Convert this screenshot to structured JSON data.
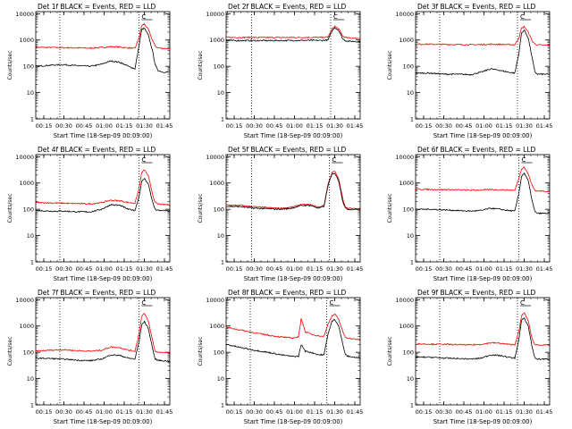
{
  "figure": {
    "xlabel": "Start Time (18-Sep-09 00:09:00)",
    "ylabel": "Counts/sec",
    "x_ticks": [
      "00:15",
      "00:30",
      "00:45",
      "01:00",
      "01:15",
      "01:30",
      "01:45"
    ],
    "y_ticks": [
      "1",
      "10",
      "100",
      "1000",
      "10000"
    ],
    "flag_label": "C",
    "colors": {
      "events": "#000000",
      "lld": "#ff0000",
      "axes": "#000000"
    }
  },
  "chart_data": [
    {
      "type": "line",
      "title": "Det 1f BLACK = Events, RED = LLD",
      "x_minutes_label": "minutes after 00:09:00",
      "xlim": [
        "00:09",
        "01:49"
      ],
      "ylim": [
        1,
        12000
      ],
      "yscale": "log",
      "markers": [
        "00:27",
        "01:26"
      ],
      "series": [
        {
          "name": "Events",
          "color": "#000000",
          "x": [
            "00:09",
            "00:20",
            "00:30",
            "00:40",
            "00:50",
            "00:58",
            "01:05",
            "01:12",
            "01:18",
            "01:23",
            "01:26",
            "01:28",
            "01:30",
            "01:33",
            "01:36",
            "01:38",
            "01:40",
            "01:44",
            "01:49"
          ],
          "y": [
            100,
            110,
            115,
            105,
            100,
            120,
            160,
            140,
            100,
            80,
            600,
            2500,
            2800,
            1500,
            400,
            120,
            70,
            60,
            60
          ]
        },
        {
          "name": "LLD",
          "color": "#ff0000",
          "x": [
            "00:09",
            "00:20",
            "00:30",
            "00:40",
            "00:50",
            "00:58",
            "01:05",
            "01:12",
            "01:18",
            "01:23",
            "01:26",
            "01:28",
            "01:30",
            "01:33",
            "01:36",
            "01:38",
            "01:40",
            "01:44",
            "01:49"
          ],
          "y": [
            520,
            520,
            510,
            500,
            490,
            520,
            560,
            540,
            500,
            480,
            1200,
            3500,
            4000,
            2500,
            1000,
            600,
            500,
            480,
            470
          ]
        }
      ]
    },
    {
      "type": "line",
      "title": "Det 2f BLACK = Events, RED = LLD",
      "xlim": [
        "00:09",
        "01:49"
      ],
      "ylim": [
        1,
        12000
      ],
      "yscale": "log",
      "markers": [
        "00:28",
        "01:27"
      ],
      "series": [
        {
          "name": "Events",
          "color": "#000000",
          "x": [
            "00:09",
            "00:20",
            "00:30",
            "00:40",
            "00:50",
            "01:00",
            "01:10",
            "01:20",
            "01:25",
            "01:28",
            "01:30",
            "01:33",
            "01:36",
            "01:38",
            "01:40",
            "01:44",
            "01:49"
          ],
          "y": [
            950,
            950,
            950,
            950,
            950,
            960,
            970,
            960,
            1000,
            2200,
            3000,
            2300,
            1100,
            950,
            900,
            880,
            870
          ]
        },
        {
          "name": "LLD",
          "color": "#ff0000",
          "x": [
            "00:09",
            "00:20",
            "00:30",
            "00:40",
            "00:50",
            "01:00",
            "01:10",
            "01:20",
            "01:25",
            "01:28",
            "01:30",
            "01:33",
            "01:36",
            "01:38",
            "01:40",
            "01:44",
            "01:49"
          ],
          "y": [
            1250,
            1250,
            1250,
            1240,
            1240,
            1250,
            1260,
            1250,
            1300,
            2600,
            3300,
            2600,
            1400,
            1250,
            1200,
            1180,
            1150
          ]
        }
      ]
    },
    {
      "type": "line",
      "title": "Det 3f BLACK = Events, RED = LLD",
      "xlim": [
        "00:09",
        "01:49"
      ],
      "ylim": [
        1,
        12000
      ],
      "yscale": "log",
      "markers": [
        "00:27",
        "01:25"
      ],
      "series": [
        {
          "name": "Events",
          "color": "#000000",
          "x": [
            "00:09",
            "00:20",
            "00:30",
            "00:40",
            "00:50",
            "00:58",
            "01:05",
            "01:12",
            "01:18",
            "01:23",
            "01:26",
            "01:28",
            "01:30",
            "01:33",
            "01:36",
            "01:38",
            "01:40",
            "01:44",
            "01:49"
          ],
          "y": [
            55,
            55,
            50,
            50,
            48,
            60,
            80,
            70,
            60,
            55,
            300,
            1800,
            2400,
            1200,
            200,
            60,
            50,
            50,
            50
          ]
        },
        {
          "name": "LLD",
          "color": "#ff0000",
          "x": [
            "00:09",
            "00:20",
            "00:30",
            "00:40",
            "00:50",
            "00:58",
            "01:05",
            "01:12",
            "01:18",
            "01:23",
            "01:26",
            "01:28",
            "01:30",
            "01:33",
            "01:36",
            "01:38",
            "01:40",
            "01:44",
            "01:49"
          ],
          "y": [
            700,
            690,
            680,
            670,
            660,
            670,
            690,
            680,
            670,
            660,
            1200,
            2800,
            3200,
            2000,
            900,
            700,
            650,
            640,
            630
          ]
        }
      ]
    },
    {
      "type": "line",
      "title": "Det 4f BLACK = Events, RED = LLD",
      "xlim": [
        "00:09",
        "01:49"
      ],
      "ylim": [
        1,
        12000
      ],
      "yscale": "log",
      "markers": [
        "00:27",
        "01:26"
      ],
      "series": [
        {
          "name": "Events",
          "color": "#000000",
          "x": [
            "00:09",
            "00:20",
            "00:30",
            "00:40",
            "00:50",
            "00:58",
            "01:05",
            "01:12",
            "01:18",
            "01:23",
            "01:26",
            "01:28",
            "01:30",
            "01:33",
            "01:36",
            "01:38",
            "01:40",
            "01:44",
            "01:49"
          ],
          "y": [
            90,
            85,
            85,
            80,
            80,
            100,
            150,
            140,
            100,
            90,
            300,
            1100,
            1500,
            900,
            200,
            100,
            90,
            90,
            85
          ]
        },
        {
          "name": "LLD",
          "color": "#ff0000",
          "x": [
            "00:09",
            "00:20",
            "00:30",
            "00:40",
            "00:50",
            "00:58",
            "01:05",
            "01:12",
            "01:18",
            "01:23",
            "01:26",
            "01:28",
            "01:30",
            "01:33",
            "01:36",
            "01:38",
            "01:40",
            "01:44",
            "01:49"
          ],
          "y": [
            180,
            175,
            170,
            165,
            160,
            180,
            220,
            210,
            180,
            170,
            600,
            2400,
            3200,
            1800,
            400,
            180,
            160,
            150,
            150
          ]
        }
      ]
    },
    {
      "type": "line",
      "title": "Det 5f BLACK = Events, RED = LLD",
      "xlim": [
        "00:09",
        "01:49"
      ],
      "ylim": [
        1,
        12000
      ],
      "yscale": "log",
      "markers": [
        "00:28",
        "01:26"
      ],
      "series": [
        {
          "name": "Events",
          "color": "#000000",
          "x": [
            "00:09",
            "00:20",
            "00:30",
            "00:40",
            "00:50",
            "00:58",
            "01:05",
            "01:12",
            "01:18",
            "01:22",
            "01:25",
            "01:28",
            "01:30",
            "01:33",
            "01:36",
            "01:38",
            "01:40",
            "01:44",
            "01:49"
          ],
          "y": [
            130,
            125,
            110,
            105,
            100,
            110,
            140,
            140,
            110,
            130,
            800,
            2200,
            2400,
            1200,
            200,
            110,
            100,
            100,
            100
          ]
        },
        {
          "name": "LLD",
          "color": "#ff0000",
          "x": [
            "00:09",
            "00:20",
            "00:30",
            "00:40",
            "00:50",
            "00:58",
            "01:05",
            "01:12",
            "01:18",
            "01:22",
            "01:25",
            "01:28",
            "01:30",
            "01:33",
            "01:36",
            "01:38",
            "01:40",
            "01:44",
            "01:49"
          ],
          "y": [
            145,
            140,
            125,
            115,
            110,
            120,
            150,
            150,
            120,
            140,
            900,
            2500,
            2800,
            1400,
            250,
            120,
            110,
            105,
            105
          ]
        }
      ]
    },
    {
      "type": "line",
      "title": "Det 6f BLACK = Events, RED = LLD",
      "xlim": [
        "00:09",
        "01:49"
      ],
      "ylim": [
        1,
        12000
      ],
      "yscale": "log",
      "markers": [
        "00:27",
        "01:26"
      ],
      "series": [
        {
          "name": "Events",
          "color": "#000000",
          "x": [
            "00:09",
            "00:20",
            "00:30",
            "00:40",
            "00:50",
            "00:58",
            "01:05",
            "01:12",
            "01:18",
            "01:23",
            "01:26",
            "01:28",
            "01:30",
            "01:33",
            "01:36",
            "01:38",
            "01:40",
            "01:44",
            "01:49"
          ],
          "y": [
            100,
            100,
            95,
            90,
            85,
            90,
            110,
            100,
            90,
            85,
            400,
            1800,
            2400,
            1200,
            200,
            80,
            70,
            70,
            70
          ]
        },
        {
          "name": "LLD",
          "color": "#ff0000",
          "x": [
            "00:09",
            "00:20",
            "00:30",
            "00:40",
            "00:50",
            "00:58",
            "01:05",
            "01:12",
            "01:18",
            "01:23",
            "01:26",
            "01:28",
            "01:30",
            "01:33",
            "01:36",
            "01:38",
            "01:40",
            "01:44",
            "01:49"
          ],
          "y": [
            580,
            570,
            560,
            550,
            530,
            540,
            560,
            550,
            540,
            520,
            1500,
            3500,
            4000,
            2200,
            800,
            520,
            500,
            490,
            480
          ]
        }
      ]
    },
    {
      "type": "line",
      "title": "Det 7f BLACK = Events, RED = LLD",
      "xlim": [
        "00:09",
        "01:49"
      ],
      "ylim": [
        1,
        12000
      ],
      "yscale": "log",
      "markers": [
        "00:27",
        "01:26"
      ],
      "series": [
        {
          "name": "Events",
          "color": "#000000",
          "x": [
            "00:09",
            "00:20",
            "00:30",
            "00:40",
            "00:50",
            "00:58",
            "01:05",
            "01:12",
            "01:18",
            "01:23",
            "01:26",
            "01:28",
            "01:30",
            "01:33",
            "01:36",
            "01:38",
            "01:40",
            "01:44",
            "01:49"
          ],
          "y": [
            60,
            58,
            55,
            50,
            48,
            55,
            80,
            75,
            60,
            55,
            250,
            1100,
            1500,
            800,
            150,
            55,
            50,
            48,
            45
          ]
        },
        {
          "name": "LLD",
          "color": "#ff0000",
          "x": [
            "00:09",
            "00:20",
            "00:30",
            "00:40",
            "00:50",
            "00:58",
            "01:05",
            "01:12",
            "01:18",
            "01:23",
            "01:26",
            "01:28",
            "01:30",
            "01:33",
            "01:36",
            "01:38",
            "01:40",
            "01:44",
            "01:49"
          ],
          "y": [
            110,
            120,
            125,
            115,
            110,
            120,
            160,
            150,
            120,
            110,
            500,
            2400,
            3000,
            1500,
            300,
            110,
            100,
            100,
            95
          ]
        }
      ]
    },
    {
      "type": "line",
      "title": "Det 8f BLACK = Events, RED = LLD",
      "xlim": [
        "00:09",
        "01:49"
      ],
      "ylim": [
        1,
        12000
      ],
      "yscale": "log",
      "markers": [
        "00:27",
        "01:24"
      ],
      "series": [
        {
          "name": "Events",
          "color": "#000000",
          "x": [
            "00:09",
            "00:20",
            "00:30",
            "00:40",
            "00:50",
            "00:58",
            "01:03",
            "01:05",
            "01:08",
            "01:12",
            "01:18",
            "01:22",
            "01:25",
            "01:28",
            "01:30",
            "01:33",
            "01:36",
            "01:38",
            "01:40",
            "01:44",
            "01:49"
          ],
          "y": [
            200,
            150,
            120,
            100,
            80,
            70,
            70,
            200,
            110,
            100,
            80,
            80,
            500,
            1500,
            1800,
            1000,
            200,
            80,
            70,
            65,
            60
          ]
        },
        {
          "name": "LLD",
          "color": "#ff0000",
          "x": [
            "00:09",
            "00:20",
            "00:30",
            "00:40",
            "00:50",
            "00:58",
            "01:03",
            "01:05",
            "01:08",
            "01:12",
            "01:18",
            "01:22",
            "01:25",
            "01:28",
            "01:30",
            "01:33",
            "01:36",
            "01:38",
            "01:40",
            "01:44",
            "01:49"
          ],
          "y": [
            900,
            700,
            550,
            450,
            380,
            350,
            380,
            2000,
            600,
            500,
            420,
            400,
            1200,
            2400,
            2800,
            1800,
            600,
            380,
            350,
            320,
            300
          ]
        }
      ]
    },
    {
      "type": "line",
      "title": "Det 9f BLACK = Events, RED = LLD",
      "xlim": [
        "00:09",
        "01:49"
      ],
      "ylim": [
        1,
        12000
      ],
      "yscale": "log",
      "markers": [
        "00:27",
        "01:25"
      ],
      "series": [
        {
          "name": "Events",
          "color": "#000000",
          "x": [
            "00:09",
            "00:20",
            "00:30",
            "00:40",
            "00:50",
            "00:58",
            "01:05",
            "01:12",
            "01:18",
            "01:23",
            "01:26",
            "01:28",
            "01:30",
            "01:33",
            "01:36",
            "01:38",
            "01:40",
            "01:44",
            "01:49"
          ],
          "y": [
            65,
            65,
            60,
            58,
            55,
            60,
            80,
            75,
            65,
            60,
            300,
            1600,
            2000,
            1000,
            150,
            60,
            55,
            55,
            55
          ]
        },
        {
          "name": "LLD",
          "color": "#ff0000",
          "x": [
            "00:09",
            "00:20",
            "00:30",
            "00:40",
            "00:50",
            "00:58",
            "01:05",
            "01:12",
            "01:18",
            "01:23",
            "01:26",
            "01:28",
            "01:30",
            "01:33",
            "01:36",
            "01:38",
            "01:40",
            "01:44",
            "01:49"
          ],
          "y": [
            210,
            205,
            200,
            195,
            190,
            200,
            230,
            220,
            200,
            195,
            600,
            2400,
            3200,
            1600,
            300,
            200,
            190,
            190,
            185
          ]
        }
      ]
    }
  ]
}
